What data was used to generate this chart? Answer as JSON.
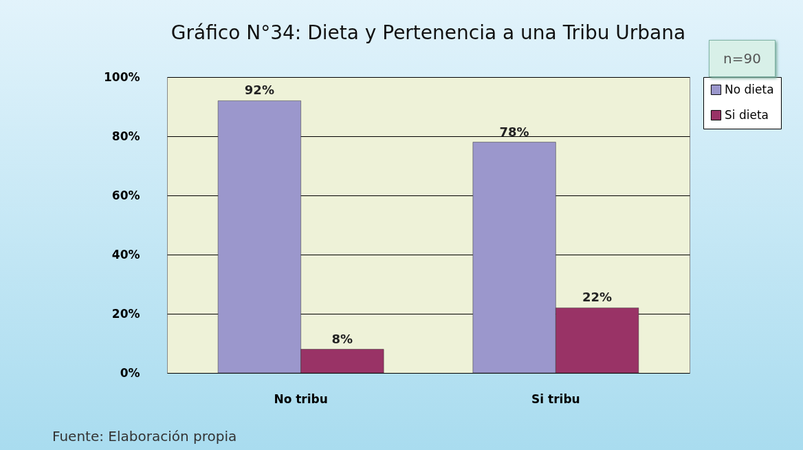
{
  "chart_data": {
    "type": "bar",
    "title": "Gráfico N°34: Dieta y Pertenencia a una Tribu Urbana",
    "categories": [
      "No tribu",
      "Si tribu"
    ],
    "series": [
      {
        "name": "No dieta",
        "color": "#9b97cc",
        "values": [
          92,
          78
        ],
        "value_labels": [
          "92%",
          "78%"
        ]
      },
      {
        "name": "Si dieta",
        "color": "#993366",
        "values": [
          8,
          22
        ],
        "value_labels": [
          "8%",
          "22%"
        ]
      }
    ],
    "ylim": [
      0,
      100
    ],
    "yticks": [
      {
        "value": 0,
        "label": "0%"
      },
      {
        "value": 20,
        "label": "20%"
      },
      {
        "value": 40,
        "label": "40%"
      },
      {
        "value": 60,
        "label": "60%"
      },
      {
        "value": 80,
        "label": "80%"
      },
      {
        "value": 100,
        "label": "100%"
      }
    ],
    "grid": "y",
    "legend": "right",
    "annotations": [
      "n=90",
      "Fuente: Elaboración propia"
    ]
  }
}
